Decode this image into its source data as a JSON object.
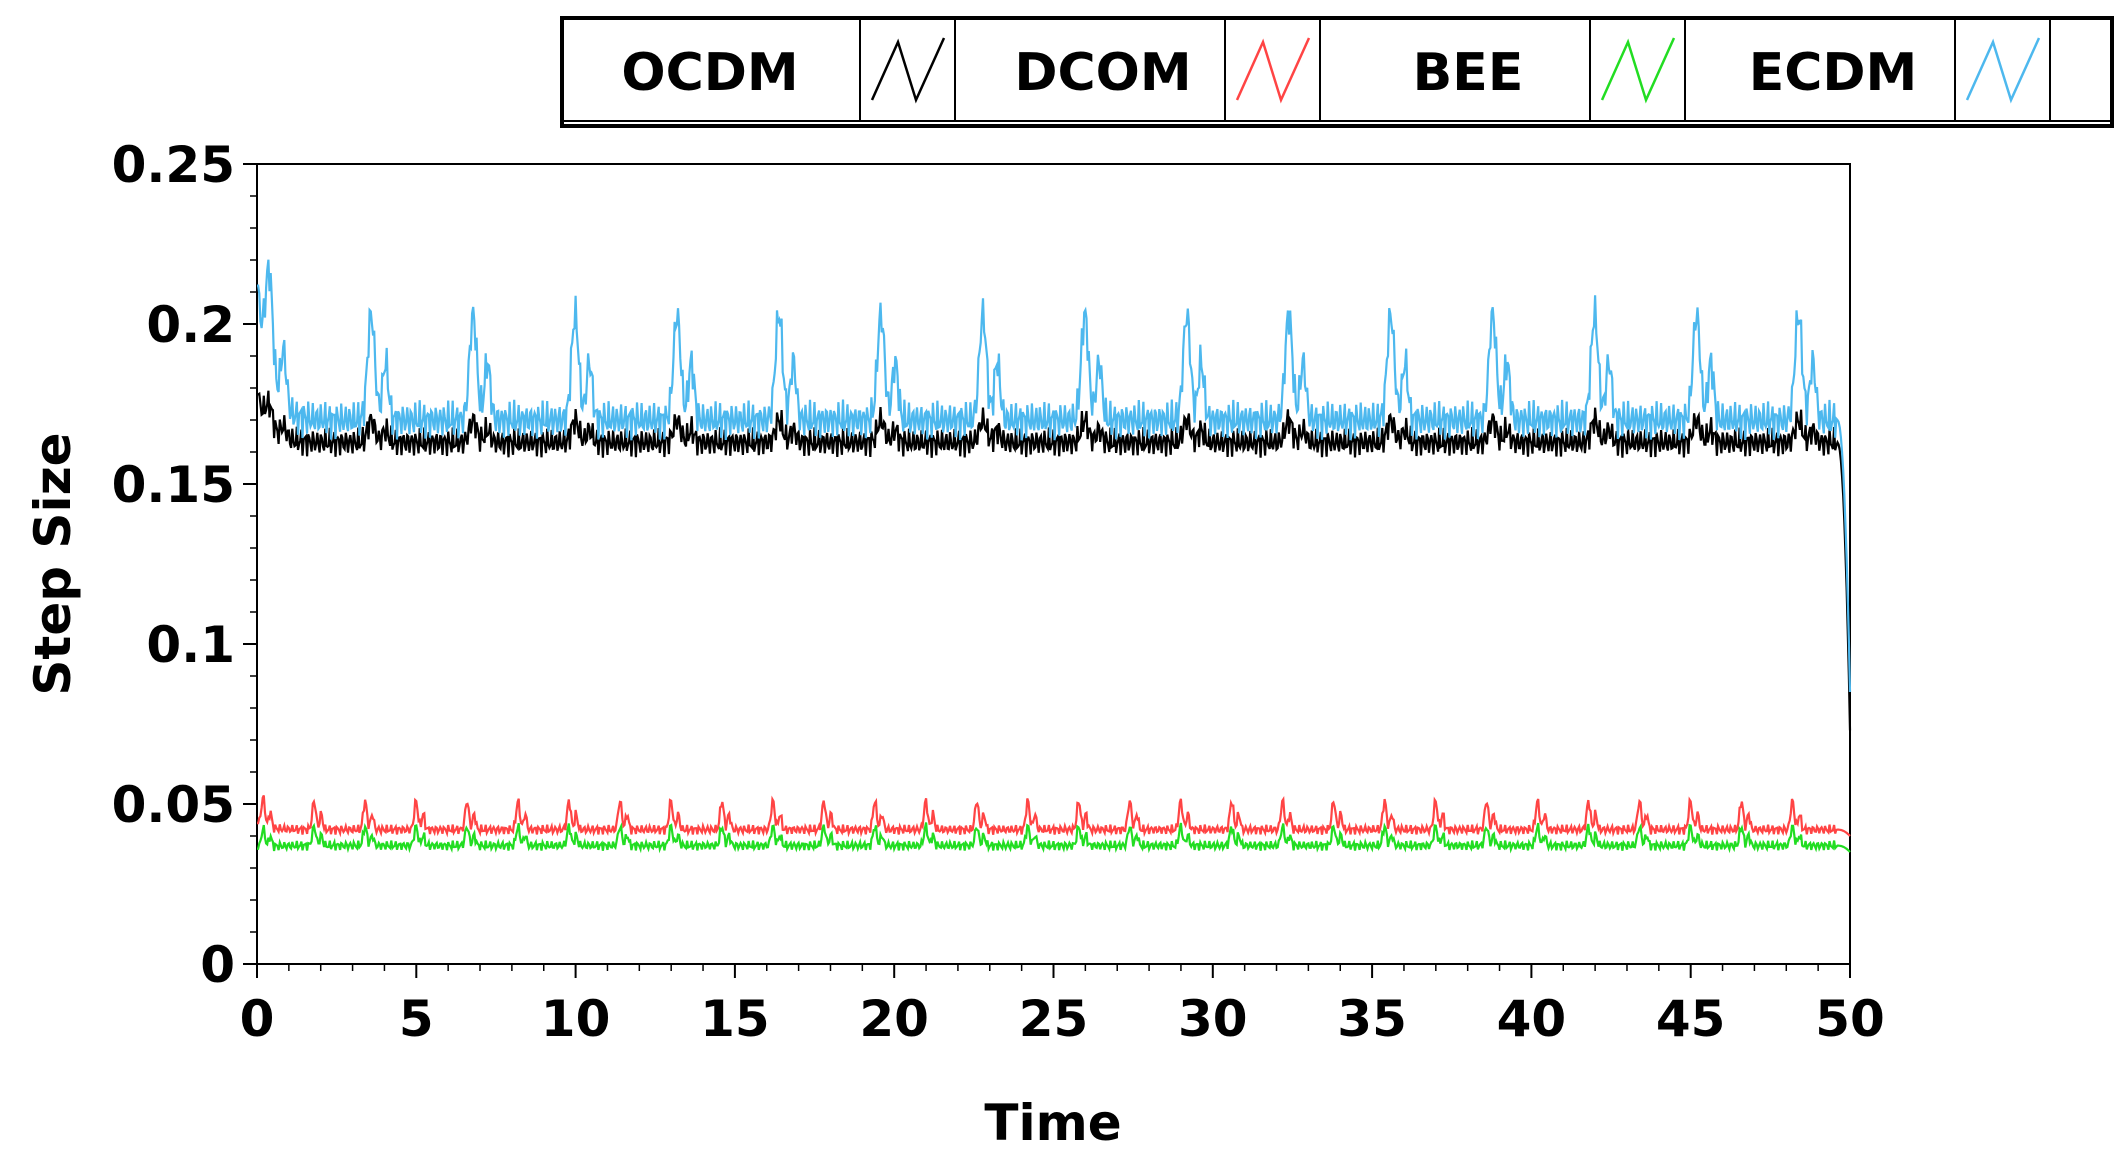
{
  "chart_data": {
    "type": "line",
    "xlabel": "Time",
    "ylabel": "Step Size",
    "xlim": [
      0,
      50
    ],
    "ylim": [
      0,
      0.25
    ],
    "x_ticks": [
      "0",
      "5",
      "10",
      "15",
      "20",
      "25",
      "30",
      "35",
      "40",
      "45",
      "50"
    ],
    "y_ticks": [
      "0",
      "0.05",
      "0.1",
      "0.15",
      "0.2",
      "0.25"
    ],
    "legend_position": "top",
    "series": [
      {
        "name": "OCDM",
        "color": "#000000",
        "baseline": 0.163,
        "start_value": 0.178,
        "end_value": 0.073,
        "period": 3.2,
        "peak": 0.17,
        "ripple": 0.003
      },
      {
        "name": "DCOM",
        "color": "#ff4444",
        "baseline": 0.042,
        "start_value": 0.044,
        "end_value": 0.04,
        "period": 1.6,
        "peak": 0.051,
        "ripple": 0.001
      },
      {
        "name": "BEE",
        "color": "#22dd22",
        "baseline": 0.037,
        "start_value": 0.036,
        "end_value": 0.035,
        "period": 1.6,
        "peak": 0.043,
        "ripple": 0.001
      },
      {
        "name": "ECDM",
        "color": "#4db8ee",
        "baseline": 0.17,
        "start_value": 0.212,
        "end_value": 0.085,
        "period": 3.2,
        "peak": 0.203,
        "ripple": 0.004
      }
    ]
  }
}
